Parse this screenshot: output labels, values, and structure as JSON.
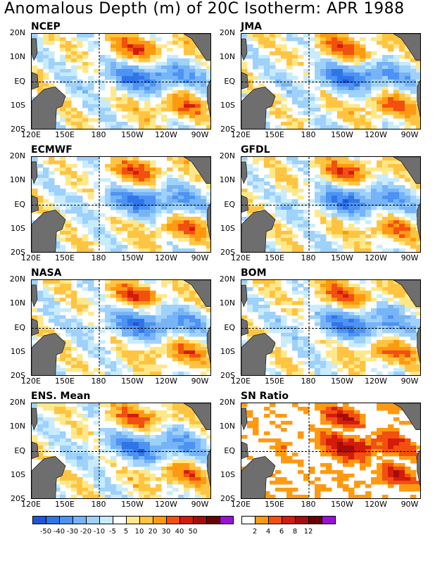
{
  "title": "Anomalous Depth (m) of 20C Isotherm: APR 1988",
  "lat_labels": [
    "20N",
    "10N",
    "EQ",
    "10S",
    "20S"
  ],
  "lon_labels": [
    "120E",
    "150E",
    "180",
    "150W",
    "120W",
    "90W"
  ],
  "panels": [
    {
      "name": "NCEP",
      "kind": "anomaly"
    },
    {
      "name": "JMA",
      "kind": "anomaly"
    },
    {
      "name": "ECMWF",
      "kind": "anomaly"
    },
    {
      "name": "GFDL",
      "kind": "anomaly"
    },
    {
      "name": "NASA",
      "kind": "anomaly"
    },
    {
      "name": "BOM",
      "kind": "anomaly"
    },
    {
      "name": "ENS. Mean",
      "kind": "anomaly"
    },
    {
      "name": "SN Ratio",
      "kind": "snratio"
    }
  ],
  "anomaly_legend": {
    "labels": [
      "-50",
      "-40",
      "-30",
      "-20",
      "-10",
      "-5",
      "5",
      "10",
      "20",
      "30",
      "40",
      "50"
    ],
    "colors": [
      "#1f56d8",
      "#3075e8",
      "#4c93f3",
      "#77b4f7",
      "#9ed1fb",
      "#c8ecfd",
      "#ffffff",
      "#ffe88a",
      "#ffc442",
      "#ff9a10",
      "#f25010",
      "#d31c0a",
      "#a50c0a",
      "#6b0000",
      "#9a10d8"
    ]
  },
  "sn_legend": {
    "labels": [
      "2",
      "4",
      "6",
      "8",
      "12"
    ],
    "colors": [
      "#ffffff",
      "#ff9a10",
      "#f25010",
      "#d31c0a",
      "#a50c0a",
      "#6b0000",
      "#9a10d8"
    ]
  },
  "colors": {
    "land": "#6e6e6e",
    "gridline": "#000000"
  }
}
